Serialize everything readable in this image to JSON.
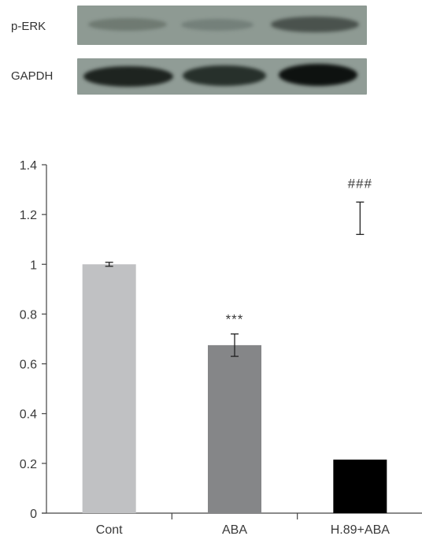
{
  "blot": {
    "rows": [
      {
        "label": "p-ERK"
      },
      {
        "label": "GAPDH"
      }
    ]
  },
  "chart_data": {
    "type": "bar",
    "categories": [
      "Cont",
      "ABA",
      "H.89+ABA"
    ],
    "values": [
      1.0,
      0.675,
      0.215
    ],
    "errors": [
      0.008,
      0.045,
      null
    ],
    "error_only": [
      null,
      null,
      {
        "low": 1.12,
        "high": 1.25
      }
    ],
    "annotations": [
      {
        "category": "ABA",
        "text": "***",
        "y": 0.78
      },
      {
        "category": "H.89+ABA",
        "text": "###",
        "y": 1.325
      }
    ],
    "colors": [
      "#c0c1c3",
      "#858688",
      "#000000"
    ],
    "ylim": [
      0,
      1.4
    ],
    "yticks": [
      0,
      0.2,
      0.4,
      0.6,
      0.8,
      1,
      1.2,
      1.4
    ],
    "ytick_labels": [
      "0",
      "0.2",
      "0.4",
      "0.6",
      "0.8",
      "1",
      "1.2",
      "1.4"
    ],
    "title": "",
    "xlabel": "",
    "ylabel": "",
    "grid": false
  }
}
